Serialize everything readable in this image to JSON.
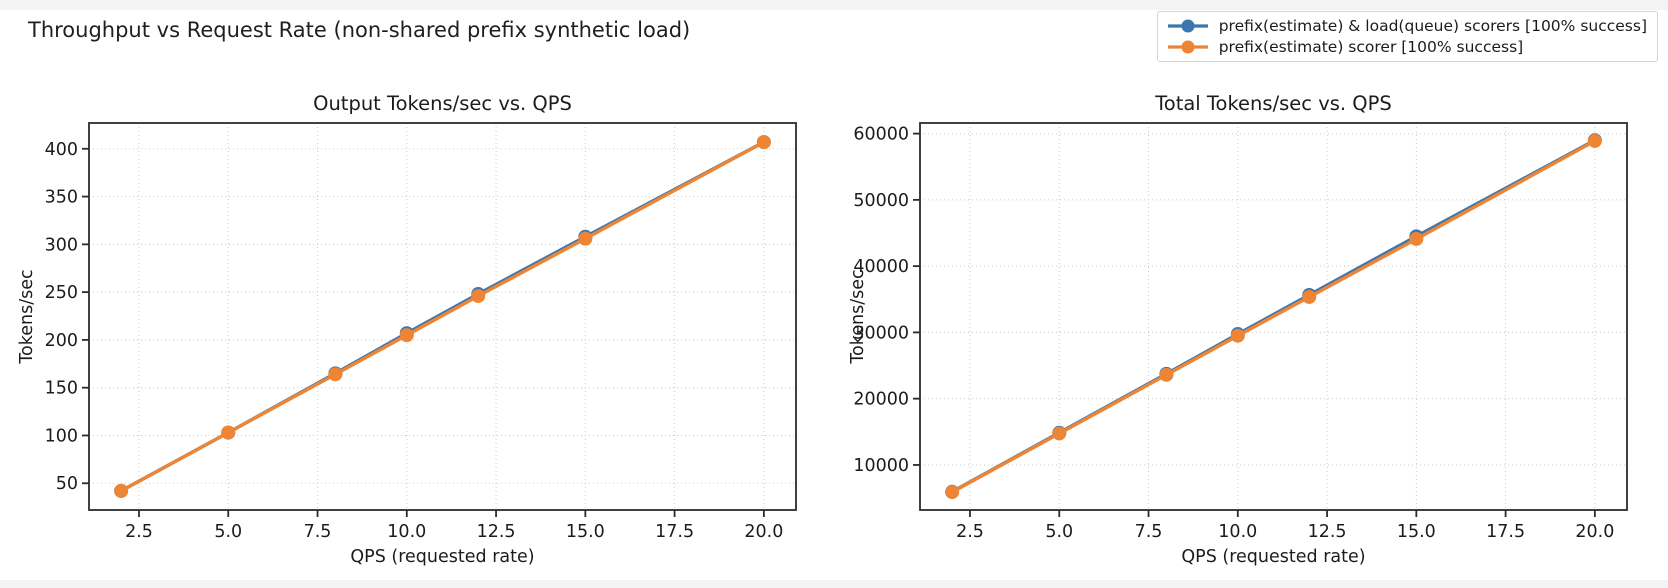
{
  "figure": {
    "suptitle": "Throughput vs Request Rate (non-shared prefix synthetic load)"
  },
  "legend": {
    "position": "top-right",
    "items": [
      {
        "label": "prefix(estimate) & load(queue) scorers [100% success]",
        "color": "#3b76af",
        "marker": "line-circle-icon"
      },
      {
        "label": "prefix(estimate) scorer [100% success]",
        "color": "#ee8535",
        "marker": "line-circle-icon"
      }
    ]
  },
  "chart_data": [
    {
      "type": "line",
      "title": "Output Tokens/sec vs. QPS",
      "xlabel": "QPS (requested rate)",
      "ylabel": "Tokens/sec",
      "x": [
        2,
        5,
        8,
        10,
        12,
        15,
        20
      ],
      "series": [
        {
          "name": "prefix(estimate) & load(queue) scorers [100% success]",
          "color": "#3b76af",
          "values": [
            42,
            103,
            165,
            207,
            248,
            308,
            407
          ]
        },
        {
          "name": "prefix(estimate) scorer [100% success]",
          "color": "#ee8535",
          "values": [
            42,
            103,
            164,
            205,
            246,
            306,
            407
          ]
        }
      ],
      "xlim": [
        1.1,
        20.9
      ],
      "ylim": [
        22,
        427
      ],
      "xticks": [
        2.5,
        5.0,
        7.5,
        10.0,
        12.5,
        15.0,
        17.5,
        20.0
      ],
      "xtick_labels": [
        "2.5",
        "5.0",
        "7.5",
        "10.0",
        "12.5",
        "15.0",
        "17.5",
        "20.0"
      ],
      "yticks": [
        50,
        100,
        150,
        200,
        250,
        300,
        350,
        400
      ],
      "ytick_labels": [
        "50",
        "100",
        "150",
        "200",
        "250",
        "300",
        "350",
        "400"
      ],
      "grid": true,
      "grid_style": "dotted",
      "marker": "circle"
    },
    {
      "type": "line",
      "title": "Total Tokens/sec vs. QPS",
      "xlabel": "QPS (requested rate)",
      "ylabel": "Tokens/sec",
      "x": [
        2,
        5,
        8,
        10,
        12,
        15,
        20
      ],
      "series": [
        {
          "name": "prefix(estimate) & load(queue) scorers [100% success]",
          "color": "#3b76af",
          "values": [
            5950,
            14850,
            23750,
            29750,
            35650,
            44500,
            59000
          ]
        },
        {
          "name": "prefix(estimate) scorer [100% success]",
          "color": "#ee8535",
          "values": [
            5900,
            14750,
            23600,
            29500,
            35350,
            44100,
            58900
          ]
        }
      ],
      "xlim": [
        1.1,
        20.9
      ],
      "ylim": [
        3200,
        61600
      ],
      "xticks": [
        2.5,
        5.0,
        7.5,
        10.0,
        12.5,
        15.0,
        17.5,
        20.0
      ],
      "xtick_labels": [
        "2.5",
        "5.0",
        "7.5",
        "10.0",
        "12.5",
        "15.0",
        "17.5",
        "20.0"
      ],
      "yticks": [
        10000,
        20000,
        30000,
        40000,
        50000,
        60000
      ],
      "ytick_labels": [
        "10000",
        "20000",
        "30000",
        "40000",
        "50000",
        "60000"
      ],
      "grid": true,
      "grid_style": "dotted",
      "marker": "circle"
    }
  ]
}
